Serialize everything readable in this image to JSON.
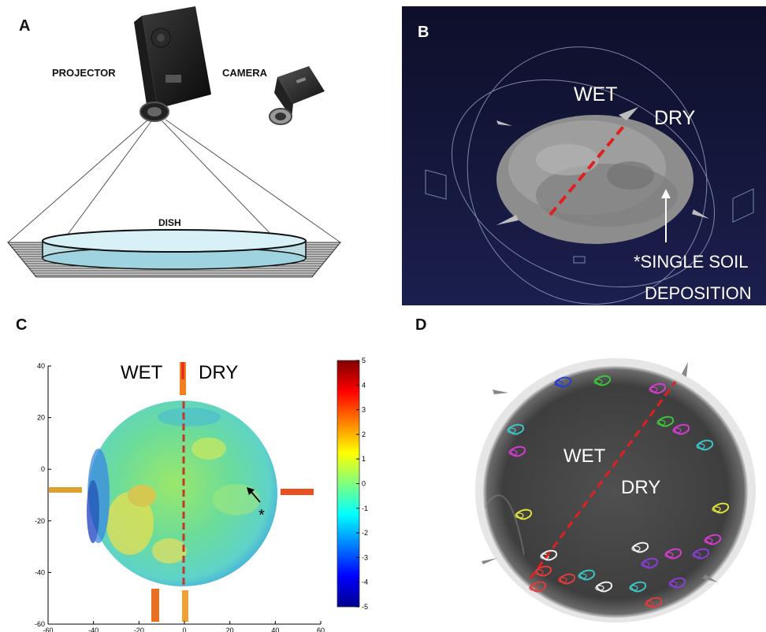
{
  "panels": {
    "a": {
      "label": "A",
      "projector_label": "PROJECTOR",
      "camera_label": "CAMERA",
      "dish_label": "DISH"
    },
    "b": {
      "label": "B",
      "wet_label": "WET",
      "dry_label": "DRY",
      "note_line1": "*SINGLE SOIL",
      "note_line2": "DEPOSITION",
      "background_color": "#14163a",
      "surface_color": "#9a9a9a",
      "divider_color": "#e02020"
    },
    "c": {
      "label": "C",
      "wet_label": "WET",
      "dry_label": "DRY",
      "marker": "*",
      "divider_color": "#c0392b"
    },
    "d": {
      "label": "D",
      "wet_label": "WET",
      "dry_label": "DRY",
      "dish_color": "#4a4a4a",
      "divider_color": "#e02020",
      "track_colors": [
        "#2b3bd6",
        "#3cc43c",
        "#d43ccf",
        "#3cc4c4",
        "#e0e03c",
        "#e03c3c",
        "#8a3cd6",
        "#f0f0f0",
        "#e08a3c"
      ]
    }
  },
  "chart_data": {
    "type": "heatmap",
    "title": "",
    "xlabel": "",
    "ylabel": "",
    "xlim": [
      -60,
      60
    ],
    "ylim": [
      -60,
      40
    ],
    "x_ticks": [
      "-60",
      "-40",
      "-20",
      "0",
      "20",
      "40",
      "60"
    ],
    "y_ticks": [
      "40",
      "20",
      "0",
      "-20",
      "-40",
      "-60"
    ],
    "colorbar": {
      "min": -5,
      "max": 5,
      "ticks": [
        "5",
        "4",
        "3",
        "2",
        "1",
        "0",
        "-1",
        "-2",
        "-3",
        "-4",
        "-5"
      ]
    }
  }
}
